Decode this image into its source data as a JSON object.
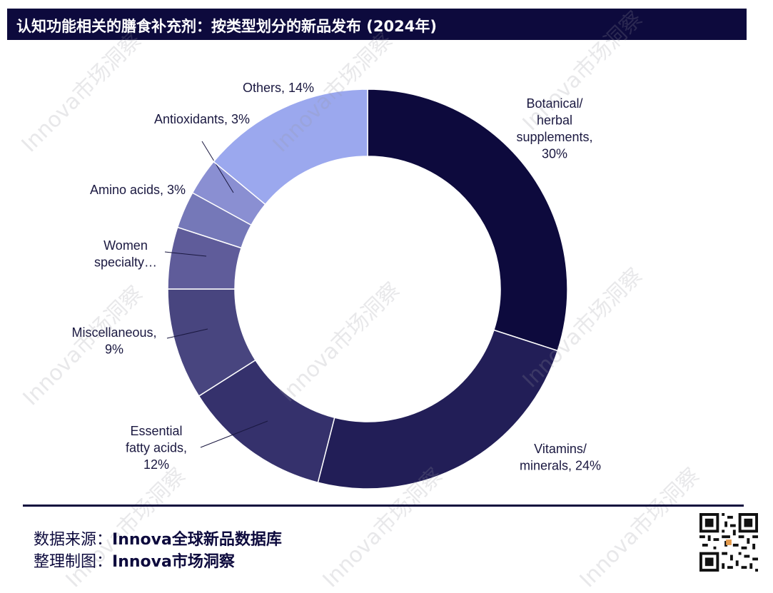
{
  "header": {
    "title": "认知功能相关的膳食补充剂：按类型划分的新品发布 (2024年)"
  },
  "colors": {
    "title_bg": "#0d0a3d",
    "text": "#1a1840"
  },
  "chart_data": {
    "type": "pie",
    "title": "认知功能相关的膳食补充剂：按类型划分的新品发布 (2024年)",
    "style": "donut",
    "slices": [
      {
        "label_lines": [
          "Botanical/",
          "herbal",
          "supplements,",
          "30%"
        ],
        "value": 30,
        "color": "#0d0a3d"
      },
      {
        "label_lines": [
          "Vitamins/",
          "minerals, 24%"
        ],
        "value": 24,
        "color": "#221e57"
      },
      {
        "label_lines": [
          "Essential",
          "fatty acids,",
          "12%"
        ],
        "value": 12,
        "color": "#35316c"
      },
      {
        "label_lines": [
          "Miscellaneous,",
          "9%"
        ],
        "value": 9,
        "color": "#48457f"
      },
      {
        "label_lines": [
          "Women",
          "specialty…"
        ],
        "value": 5,
        "color": "#5f5c9a"
      },
      {
        "label_lines": [
          "Amino  acids, 3%"
        ],
        "value": 3,
        "color": "#7578b8"
      },
      {
        "label_lines": [
          "Antioxidants, 3%"
        ],
        "value": 3,
        "color": "#8a8fd2"
      },
      {
        "label_lines": [
          "Others, 14%"
        ],
        "value": 14,
        "color": "#9ba8ee"
      }
    ]
  },
  "watermark": {
    "text": "Innova市场洞察"
  },
  "footer": {
    "source_label": "数据来源：",
    "source_value": "Innova全球新品数据库",
    "credit_label": "整理制图：",
    "credit_value": "Innova市场洞察"
  },
  "qr_icon": "qr-code-icon"
}
